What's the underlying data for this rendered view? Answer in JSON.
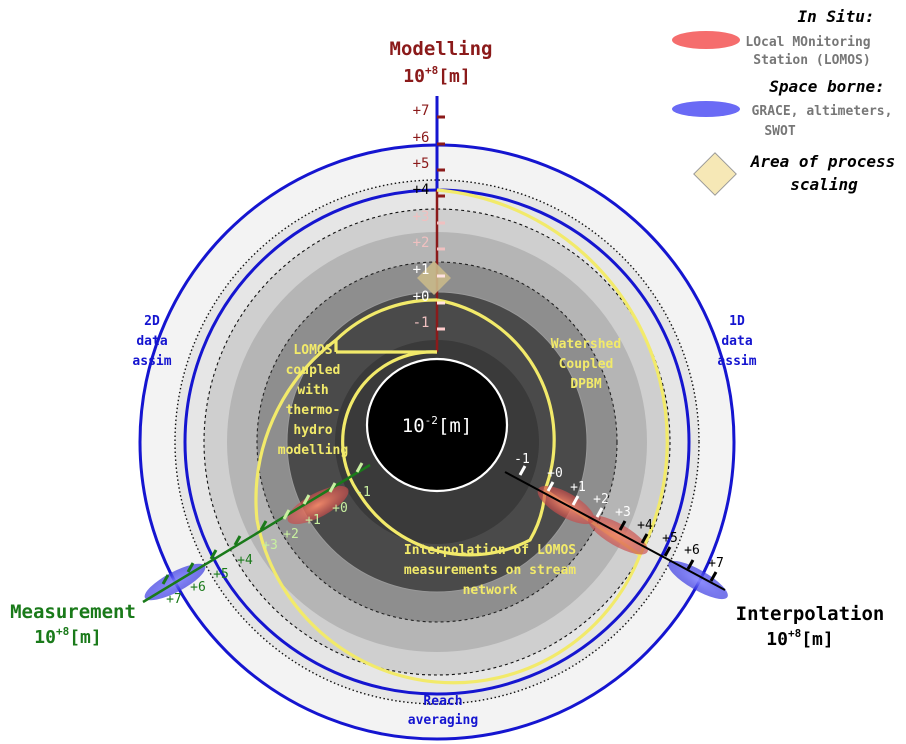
{
  "axes": {
    "modelling": {
      "title": "Modelling",
      "unit_base": "10",
      "unit_exp": "+8",
      "unit_suffix": "[m]",
      "ticks": [
        "+7",
        "+6",
        "+5",
        "+4",
        "+3",
        "+2",
        "+1",
        "+0",
        "-1"
      ]
    },
    "measurement": {
      "title": "Measurement",
      "unit_base": "10",
      "unit_exp": "+8",
      "unit_suffix": "[m]",
      "ticks": [
        "-1",
        "+0",
        "+1",
        "+2",
        "+3",
        "+4",
        "+5",
        "+6",
        "+7"
      ]
    },
    "interpolation": {
      "title": "Interpolation",
      "unit_base": "10",
      "unit_exp": "+8",
      "unit_suffix": "[m]",
      "ticks": [
        "-1",
        "+0",
        "+1",
        "+2",
        "+3",
        "+4",
        "+5",
        "+6",
        "+7"
      ]
    }
  },
  "center": {
    "unit_base": "10",
    "unit_exp": "-2",
    "unit_suffix": "[m]"
  },
  "regions": {
    "left": [
      "LOMOS",
      "coupled",
      "with",
      "thermo-",
      "hydro",
      "modelling"
    ],
    "right": [
      "Watershed",
      "Coupled",
      "DPBM"
    ],
    "bottom": [
      "Interpolation of LOMOS",
      "measurements on stream",
      "network"
    ]
  },
  "ring_labels": {
    "left": [
      "2D",
      "data",
      "assim"
    ],
    "right": [
      "1D",
      "data",
      "assim"
    ],
    "bottom": [
      "Reach",
      "averaging"
    ]
  },
  "legend": {
    "in_situ_title": "In Situ:",
    "in_situ_text": [
      "LOcal MOnitoring",
      "Station (LOMOS)"
    ],
    "space_title": "Space borne:",
    "space_text": [
      "GRACE, altimeters,",
      "SWOT"
    ],
    "scaling_text": [
      "Area of process",
      "scaling"
    ]
  },
  "colors": {
    "modelling": "#8b1a1a",
    "measurement": "#1a7a1a",
    "interpolation": "#000000",
    "ring_blue": "#1515d0",
    "yellow_path": "#f2ea6a",
    "in_situ": "#f56d6d",
    "space_borne": "#6a6af5",
    "scaling": "#f6e8b6"
  }
}
